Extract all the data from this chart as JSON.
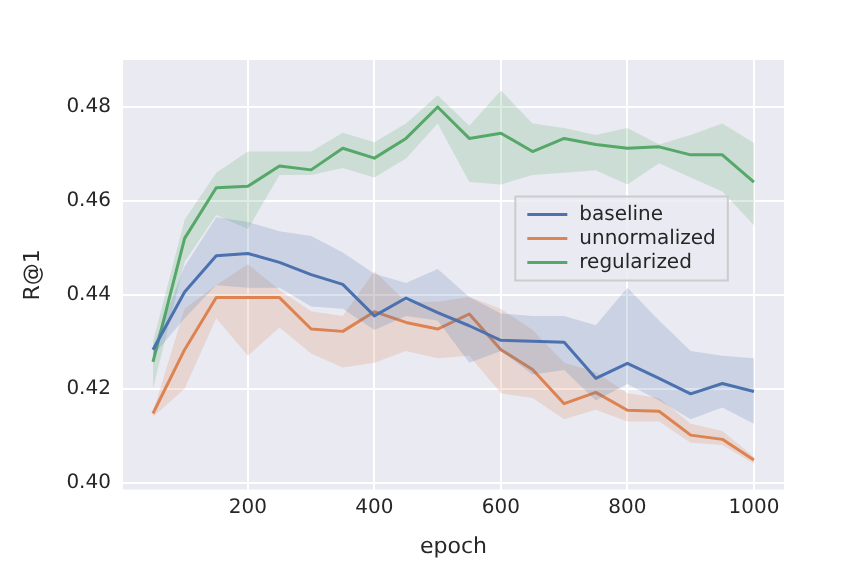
{
  "chart_data": {
    "type": "line",
    "xlabel": "epoch",
    "ylabel": "R@1",
    "x": [
      50,
      100,
      150,
      200,
      250,
      300,
      350,
      400,
      450,
      500,
      550,
      600,
      650,
      700,
      750,
      800,
      850,
      900,
      950,
      1000
    ],
    "xlim": [
      2.5,
      1047.5
    ],
    "xticks": [
      200,
      400,
      600,
      800,
      1000
    ],
    "ylim": [
      0.3985,
      0.49
    ],
    "yticks": [
      {
        "value": 0.4,
        "label": "0.40"
      },
      {
        "value": 0.42,
        "label": "0.42"
      },
      {
        "value": 0.44,
        "label": "0.44"
      },
      {
        "value": 0.46,
        "label": "0.46"
      },
      {
        "value": 0.48,
        "label": "0.48"
      }
    ],
    "grid": true,
    "legend": "right",
    "marker": "none",
    "line_style": "solid",
    "series": [
      {
        "name": "baseline",
        "color": "#4c72b0",
        "values": [
          0.4283,
          0.4406,
          0.4483,
          0.4488,
          0.4469,
          0.4443,
          0.4422,
          0.4355,
          0.4393,
          0.4362,
          0.4334,
          0.4303,
          0.4301,
          0.4299,
          0.4222,
          0.4254,
          0.4222,
          0.4189,
          0.4211,
          0.4194
        ],
        "lower": [
          0.427,
          0.435,
          0.442,
          0.4415,
          0.4415,
          0.4375,
          0.437,
          0.4325,
          0.4355,
          0.4345,
          0.4255,
          0.428,
          0.423,
          0.424,
          0.4175,
          0.421,
          0.4175,
          0.4135,
          0.416,
          0.4125
        ],
        "upper": [
          0.429,
          0.446,
          0.4565,
          0.4555,
          0.4535,
          0.4525,
          0.449,
          0.4445,
          0.4425,
          0.4455,
          0.4395,
          0.436,
          0.4355,
          0.4355,
          0.4335,
          0.4415,
          0.4345,
          0.428,
          0.427,
          0.4265
        ]
      },
      {
        "name": "unnormalized",
        "color": "#dd8452",
        "values": [
          0.4147,
          0.4283,
          0.4394,
          0.4394,
          0.4394,
          0.4327,
          0.4322,
          0.4364,
          0.4341,
          0.4327,
          0.4359,
          0.4283,
          0.4241,
          0.4168,
          0.4192,
          0.4154,
          0.4152,
          0.4101,
          0.4092,
          0.4048
        ],
        "lower": [
          0.414,
          0.42,
          0.435,
          0.427,
          0.433,
          0.4275,
          0.4245,
          0.4255,
          0.428,
          0.4265,
          0.427,
          0.419,
          0.418,
          0.4135,
          0.4155,
          0.413,
          0.413,
          0.4085,
          0.408,
          0.404
        ],
        "upper": [
          0.415,
          0.437,
          0.442,
          0.4465,
          0.441,
          0.4365,
          0.4355,
          0.445,
          0.4385,
          0.4385,
          0.4395,
          0.437,
          0.4325,
          0.4255,
          0.4235,
          0.419,
          0.418,
          0.4125,
          0.411,
          0.4055
        ]
      },
      {
        "name": "regularized",
        "color": "#55a868",
        "values": [
          0.4257,
          0.452,
          0.4628,
          0.4631,
          0.4674,
          0.4666,
          0.4712,
          0.4691,
          0.4733,
          0.48,
          0.4733,
          0.4744,
          0.4705,
          0.4733,
          0.472,
          0.4712,
          0.4715,
          0.4698,
          0.4698,
          0.464
        ],
        "lower": [
          0.42,
          0.447,
          0.457,
          0.454,
          0.4655,
          0.4655,
          0.467,
          0.465,
          0.469,
          0.4765,
          0.464,
          0.4635,
          0.4655,
          0.466,
          0.4665,
          0.4635,
          0.468,
          0.465,
          0.462,
          0.4548
        ],
        "upper": [
          0.43,
          0.456,
          0.466,
          0.4705,
          0.4705,
          0.4705,
          0.4745,
          0.4725,
          0.4765,
          0.4825,
          0.476,
          0.4835,
          0.4765,
          0.4755,
          0.474,
          0.4755,
          0.472,
          0.474,
          0.4765,
          0.4723
        ]
      }
    ]
  }
}
